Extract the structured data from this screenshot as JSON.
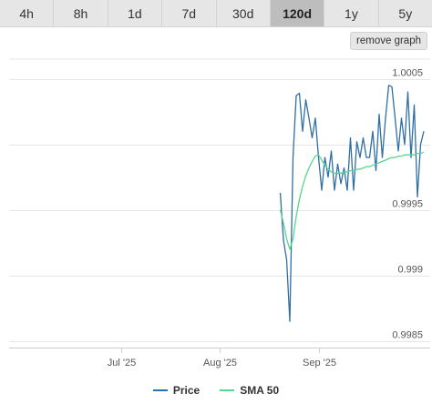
{
  "tabs": [
    {
      "label": "4h"
    },
    {
      "label": "8h"
    },
    {
      "label": "1d"
    },
    {
      "label": "7d"
    },
    {
      "label": "30d"
    },
    {
      "label": "120d",
      "active": true
    },
    {
      "label": "1y"
    },
    {
      "label": "5y"
    }
  ],
  "remove_graph_label": "remove graph",
  "colors": {
    "price": "#2f6fa3",
    "sma": "#57d58c",
    "grid": "#e6e6e6"
  },
  "chart_data": {
    "type": "line",
    "x_tick_labels": [
      "Jul '25",
      "Aug '25",
      "Sep '25"
    ],
    "x_ticks": [
      "2025-07-01",
      "2025-08-01",
      "2025-09-01"
    ],
    "xlim": [
      "2025-05-27",
      "2025-10-06"
    ],
    "y_ticks": [
      0.9985,
      0.999,
      0.9995,
      1.0005
    ],
    "y_tick_labels": [
      "0.9985",
      "0.999",
      "0.9995",
      "1.0005"
    ],
    "ylim": [
      0.99845,
      1.00065
    ],
    "grid": true,
    "legend_position": "bottom-center",
    "x": [
      "2025-08-20",
      "2025-08-21",
      "2025-08-22",
      "2025-08-23",
      "2025-08-24",
      "2025-08-25",
      "2025-08-26",
      "2025-08-27",
      "2025-08-28",
      "2025-08-29",
      "2025-08-30",
      "2025-08-31",
      "2025-09-01",
      "2025-09-02",
      "2025-09-03",
      "2025-09-04",
      "2025-09-05",
      "2025-09-06",
      "2025-09-07",
      "2025-09-08",
      "2025-09-09",
      "2025-09-10",
      "2025-09-11",
      "2025-09-12",
      "2025-09-13",
      "2025-09-14",
      "2025-09-15",
      "2025-09-16",
      "2025-09-17",
      "2025-09-18",
      "2025-09-19",
      "2025-09-20",
      "2025-09-21",
      "2025-09-22",
      "2025-09-23",
      "2025-09-24",
      "2025-09-25",
      "2025-09-26",
      "2025-09-27",
      "2025-09-28",
      "2025-09-29",
      "2025-09-30",
      "2025-10-01",
      "2025-10-02",
      "2025-10-03",
      "2025-10-04"
    ],
    "series": [
      {
        "name": "Price",
        "values": [
          0.99963,
          0.99927,
          0.99912,
          0.99865,
          0.9999,
          1.00037,
          1.00039,
          1.0001,
          1.00034,
          1.0002,
          1.00005,
          1.0002,
          0.9999,
          0.99965,
          0.9999,
          0.99975,
          0.99995,
          0.99965,
          0.99985,
          0.9997,
          0.99982,
          0.99965,
          1.00005,
          0.99965,
          1.00002,
          0.9999,
          1.00005,
          0.9999,
          0.9999,
          1.0001,
          0.9998,
          1.00023,
          0.9999,
          1.0002,
          1.00045,
          1.00044,
          1.0002,
          0.99995,
          1.0002,
          1.0,
          1.0004,
          0.9999,
          1.0003,
          0.9996,
          1.0,
          1.0001
        ]
      },
      {
        "name": "SMA 50",
        "values": [
          0.9995,
          0.9994,
          0.99928,
          0.9992,
          0.99928,
          0.99945,
          0.99958,
          0.99968,
          0.99976,
          0.99982,
          0.99987,
          0.99991,
          0.99992,
          0.99988,
          0.99984,
          0.99981,
          0.99979,
          0.99978,
          0.99978,
          0.99978,
          0.99979,
          0.99979,
          0.9998,
          0.9998,
          0.99981,
          0.99981,
          0.99982,
          0.99983,
          0.99983,
          0.99984,
          0.99985,
          0.99986,
          0.99987,
          0.99988,
          0.99989,
          0.9999,
          0.9999,
          0.99991,
          0.99991,
          0.99992,
          0.99992,
          0.99992,
          0.99992,
          0.99993,
          0.99993,
          0.99994
        ]
      }
    ]
  }
}
